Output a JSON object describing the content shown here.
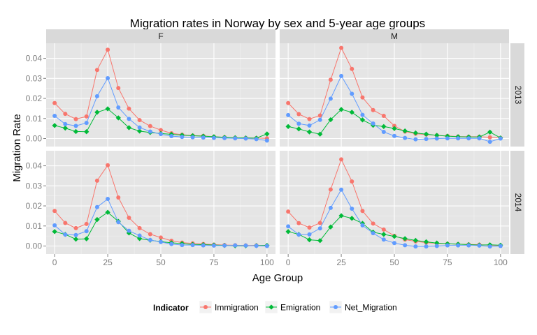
{
  "chart_data": {
    "type": "line",
    "title": "Migration rates in Norway by sex and 5-year age groups",
    "xlabel": "Age Group",
    "ylabel": "Migration Rate",
    "x_ticks": [
      0,
      25,
      50,
      75,
      100
    ],
    "y_ticks": [
      0.0,
      0.01,
      0.02,
      0.03,
      0.04
    ],
    "y_tick_labels": [
      "0.00",
      "0.01",
      "0.02",
      "0.03",
      "0.04"
    ],
    "xlim": [
      -4,
      104
    ],
    "ylim": [
      -0.004,
      0.0475
    ],
    "grid": true,
    "legend_position": "bottom",
    "legend_title": "Indicator",
    "colors": {
      "Immigration": "#F8766D",
      "Emigration": "#00BA38",
      "Net_Migration": "#619CFF"
    },
    "facet_cols": [
      "F",
      "M"
    ],
    "facet_rows": [
      "2013",
      "2014"
    ],
    "x": [
      0,
      5,
      10,
      15,
      20,
      25,
      30,
      35,
      40,
      45,
      50,
      55,
      60,
      65,
      70,
      75,
      80,
      85,
      90,
      95,
      100
    ],
    "panels": [
      {
        "sex": "F",
        "year": "2013",
        "series": [
          {
            "name": "Immigration",
            "values": [
              0.0177,
              0.0123,
              0.0097,
              0.011,
              0.0342,
              0.0443,
              0.0252,
              0.0149,
              0.0092,
              0.0062,
              0.0042,
              0.0026,
              0.0019,
              0.0015,
              0.0013,
              0.0009,
              0.0006,
              0.0004,
              0.0003,
              0.0002,
              0.0001
            ]
          },
          {
            "name": "Emigration",
            "values": [
              0.0065,
              0.0052,
              0.0035,
              0.0034,
              0.0131,
              0.0148,
              0.0103,
              0.0054,
              0.0037,
              0.003,
              0.0025,
              0.0021,
              0.0017,
              0.0014,
              0.0012,
              0.0009,
              0.0006,
              0.0004,
              0.0003,
              0.0002,
              0.0023
            ]
          },
          {
            "name": "Net_Migration",
            "values": [
              0.0113,
              0.0072,
              0.0063,
              0.0078,
              0.0211,
              0.0301,
              0.0155,
              0.0098,
              0.0055,
              0.0035,
              0.0022,
              0.0012,
              0.0008,
              0.0006,
              0.0005,
              0.0003,
              0.0002,
              0.0001,
              0.0,
              -0.0003,
              -0.001
            ]
          }
        ]
      },
      {
        "sex": "M",
        "year": "2013",
        "series": [
          {
            "name": "Immigration",
            "values": [
              0.0177,
              0.0122,
              0.0097,
              0.0115,
              0.0293,
              0.0452,
              0.0347,
              0.0205,
              0.0142,
              0.0113,
              0.0063,
              0.0035,
              0.0024,
              0.002,
              0.0016,
              0.0013,
              0.001,
              0.0009,
              0.0009,
              0.0006,
              0.0003
            ]
          },
          {
            "name": "Emigration",
            "values": [
              0.006,
              0.0048,
              0.0033,
              0.0022,
              0.0094,
              0.0145,
              0.0131,
              0.0093,
              0.0066,
              0.006,
              0.005,
              0.0038,
              0.0028,
              0.0022,
              0.0016,
              0.0012,
              0.0009,
              0.0008,
              0.0008,
              0.0032,
              0.0003
            ]
          },
          {
            "name": "Net_Migration",
            "values": [
              0.0117,
              0.0074,
              0.0065,
              0.0093,
              0.0199,
              0.0312,
              0.0223,
              0.0118,
              0.0075,
              0.0033,
              0.0013,
              0.0003,
              -0.0004,
              -0.0002,
              0.0,
              0.0001,
              0.0001,
              0.0001,
              0.0001,
              -0.0016,
              0.0
            ]
          }
        ]
      },
      {
        "sex": "F",
        "year": "2014",
        "series": [
          {
            "name": "Immigration",
            "values": [
              0.0175,
              0.0115,
              0.0089,
              0.011,
              0.0326,
              0.0403,
              0.0242,
              0.0141,
              0.0089,
              0.0059,
              0.0042,
              0.0026,
              0.0017,
              0.0013,
              0.001,
              0.0007,
              0.0005,
              0.0004,
              0.0003,
              0.0003,
              0.0002
            ]
          },
          {
            "name": "Emigration",
            "values": [
              0.0072,
              0.0058,
              0.0034,
              0.0036,
              0.0132,
              0.0168,
              0.0123,
              0.0065,
              0.0037,
              0.0029,
              0.0022,
              0.0016,
              0.0012,
              0.0008,
              0.0007,
              0.0005,
              0.0003,
              0.0001,
              0.0001,
              0.0002,
              0.0003
            ]
          },
          {
            "name": "Net_Migration",
            "values": [
              0.0103,
              0.0057,
              0.0055,
              0.0074,
              0.0194,
              0.0235,
              0.0119,
              0.0076,
              0.0052,
              0.003,
              0.002,
              0.001,
              0.0005,
              0.0005,
              0.0003,
              0.0002,
              0.0002,
              0.0003,
              0.0002,
              0.0001,
              0.0
            ]
          }
        ]
      },
      {
        "sex": "M",
        "year": "2014",
        "series": [
          {
            "name": "Immigration",
            "values": [
              0.0172,
              0.0114,
              0.0092,
              0.0115,
              0.0282,
              0.0432,
              0.0322,
              0.0175,
              0.0112,
              0.0082,
              0.0051,
              0.0032,
              0.0023,
              0.0017,
              0.0013,
              0.0011,
              0.0009,
              0.0008,
              0.0007,
              0.0004,
              0.0002
            ]
          },
          {
            "name": "Emigration",
            "values": [
              0.0072,
              0.0058,
              0.0031,
              0.0027,
              0.0095,
              0.0151,
              0.0138,
              0.0113,
              0.0069,
              0.0058,
              0.0048,
              0.0037,
              0.0028,
              0.0021,
              0.0015,
              0.0011,
              0.0009,
              0.0007,
              0.0005,
              0.0006,
              0.0004
            ]
          },
          {
            "name": "Net_Migration",
            "values": [
              0.0098,
              0.0057,
              0.0058,
              0.0088,
              0.019,
              0.0281,
              0.0186,
              0.0103,
              0.0064,
              0.0032,
              0.0015,
              0.0004,
              -0.0002,
              -0.0002,
              0.0,
              0.0003,
              0.0003,
              0.0003,
              0.0002,
              -0.0002,
              0.0
            ]
          }
        ]
      }
    ]
  }
}
